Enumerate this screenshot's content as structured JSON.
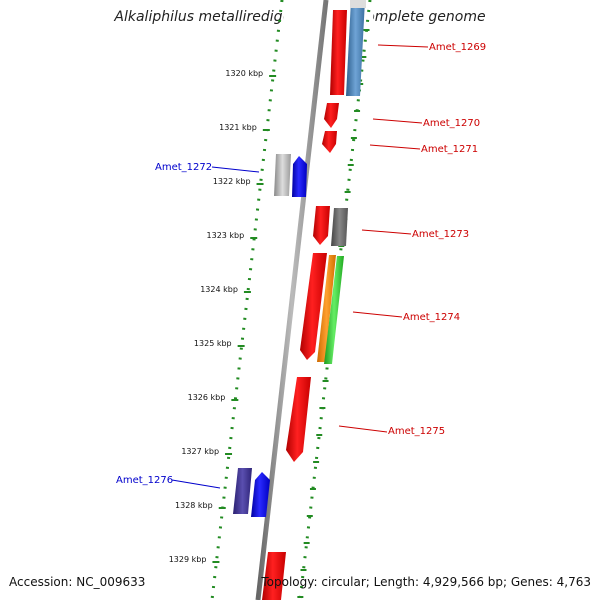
{
  "header": {
    "title": "Alkaliphilus metalliredigens QYMF, complete genome"
  },
  "footer": {
    "accession": "Accession: NC_009633",
    "topology": "Topology: circular; Length: 4,929,566 bp; Genes: 4,763"
  },
  "ruler": [
    "1320 kbp",
    "1321 kbp",
    "1322 kbp",
    "1323 kbp",
    "1324 kbp",
    "1325 kbp",
    "1326 kbp",
    "1327 kbp",
    "1328 kbp",
    "1329 kbp"
  ],
  "gene_labels": [
    {
      "text": "Amet_1269",
      "strand": "forward",
      "color": "#cc0000"
    },
    {
      "text": "Amet_1270",
      "strand": "forward",
      "color": "#cc0000"
    },
    {
      "text": "Amet_1271",
      "strand": "forward",
      "color": "#cc0000"
    },
    {
      "text": "Amet_1272",
      "strand": "reverse",
      "color": "#0000cc"
    },
    {
      "text": "Amet_1273",
      "strand": "forward",
      "color": "#cc0000"
    },
    {
      "text": "Amet_1274",
      "strand": "forward",
      "color": "#cc0000"
    },
    {
      "text": "Amet_1275",
      "strand": "forward",
      "color": "#cc0000"
    },
    {
      "text": "Amet_1276",
      "strand": "reverse",
      "color": "#0000cc"
    }
  ],
  "colors": {
    "forward_gene": "#ff0000",
    "reverse_gene": "#0000ff",
    "grey_gene": "#777777",
    "light_grey_gene": "#bbbbbb",
    "purple_gene": "#3a2e8a",
    "orange_gene": "#ff8c00",
    "green_gene": "#33cc33",
    "steelblue_gene": "#4682b4",
    "dotted_track": "#228b22",
    "backbone": "#888888"
  }
}
